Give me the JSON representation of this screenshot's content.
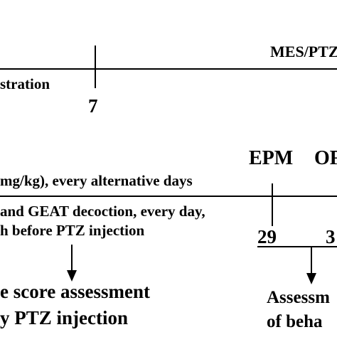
{
  "panel_top": {
    "label_protocol": "MES/PTZ",
    "label_admin": "stration",
    "tick_day": "7"
  },
  "panel_bottom": {
    "label_ptz": "mg/kg), every alternative days",
    "label_epm": "EPM",
    "label_of": "OF",
    "label_geat_line1": "and GEAT decoction, every day,",
    "label_geat_line2": "h before PTZ  injection",
    "tick_day_a": "29",
    "tick_day_b": "3",
    "outcome_left_line1": "e score assessment",
    "outcome_left_line2": "y PTZ injection",
    "outcome_right_line1": "Assessm",
    "outcome_right_line2": "of beha"
  }
}
